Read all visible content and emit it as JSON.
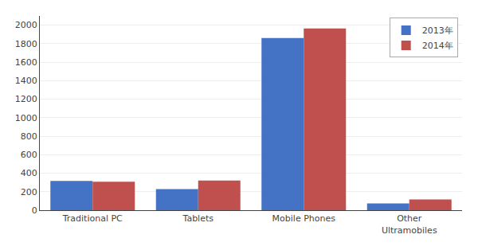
{
  "chart_data": {
    "type": "bar",
    "categories": [
      "Traditional PC",
      "Tablets",
      "Mobile Phones",
      "Other\nUltramobiles"
    ],
    "series": [
      {
        "name": "2013年",
        "color": "#4472C4",
        "values": [
          316,
          227,
          1861,
          73
        ]
      },
      {
        "name": "2014年",
        "color": "#C0504D",
        "values": [
          308,
          321,
          1964,
          116
        ]
      }
    ],
    "ylim": [
      0,
      2100
    ],
    "yticks": [
      0,
      200,
      400,
      600,
      800,
      1000,
      1200,
      1400,
      1600,
      1800,
      2000
    ],
    "grid": true,
    "legend": "upper right"
  }
}
